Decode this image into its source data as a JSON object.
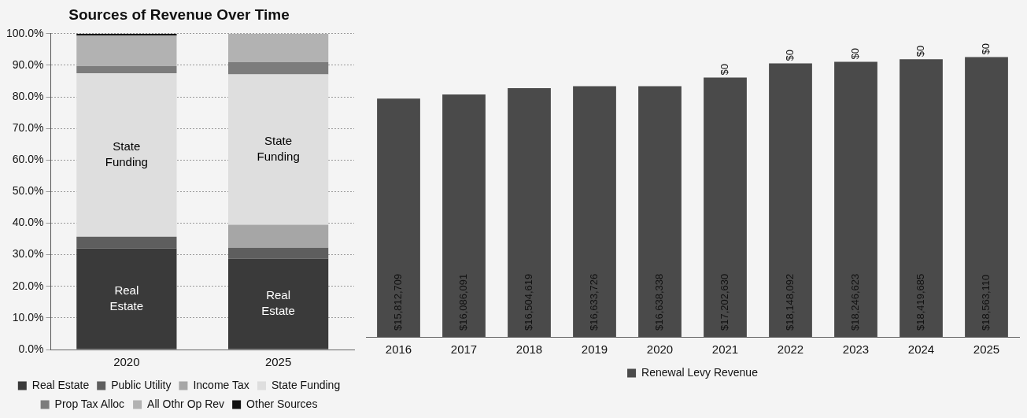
{
  "chart_data": [
    {
      "type": "bar",
      "title": "Sources of Revenue Over Time",
      "categories": [
        "2020",
        "2025"
      ],
      "stacked": true,
      "ylim": [
        0,
        100
      ],
      "yticks": [
        {
          "value": 0,
          "label": "0.0%"
        },
        {
          "value": 10,
          "label": "10.0%"
        },
        {
          "value": 20,
          "label": "20.0%"
        },
        {
          "value": 30,
          "label": "30.0%"
        },
        {
          "value": 40,
          "label": "40.0%"
        },
        {
          "value": 50,
          "label": "50.0%"
        },
        {
          "value": 60,
          "label": "60.0%"
        },
        {
          "value": 70,
          "label": "70.0%"
        },
        {
          "value": 80,
          "label": "80.0%"
        },
        {
          "value": 90,
          "label": "90.0%"
        },
        {
          "value": 100,
          "label": "100.0%"
        }
      ],
      "grid": "y",
      "legend": "bottom",
      "series": [
        {
          "name": "Real Estate",
          "color": "#3a3a3a",
          "values": [
            32.0,
            28.8
          ]
        },
        {
          "name": "Public Utility",
          "color": "#5e5e5e",
          "values": [
            3.7,
            3.4
          ]
        },
        {
          "name": "Income Tax",
          "color": "#a6a6a6",
          "values": [
            0,
            7.3
          ]
        },
        {
          "name": "State Funding",
          "color": "#dedede",
          "values": [
            51.8,
            47.6
          ]
        },
        {
          "name": "Prop Tax Alloc",
          "color": "#7c7c7c",
          "values": [
            2.2,
            3.9
          ]
        },
        {
          "name": "All Othr Op Rev",
          "color": "#b2b2b2",
          "values": [
            9.7,
            9.0
          ]
        },
        {
          "name": "Other Sources",
          "color": "#111111",
          "values": [
            0.6,
            0
          ]
        }
      ],
      "annotations": [
        "State Funding",
        "State Funding",
        "Real Estate",
        "Real Estate"
      ]
    },
    {
      "type": "bar",
      "categories": [
        "2016",
        "2017",
        "2018",
        "2019",
        "2020",
        "2021",
        "2022",
        "2023",
        "2024",
        "2025"
      ],
      "stacked": true,
      "tick_labels": "x",
      "grid": false,
      "legend": "bottom",
      "series": [
        {
          "name": "Renewal Levy Revenue",
          "color": "#4a4a4a",
          "values": [
            15812709,
            16086091,
            16504619,
            16633726,
            16638338,
            17202630,
            18148092,
            18246623,
            18419685,
            18563110
          ],
          "value_labels": [
            "$15,812,709",
            "$16,086,091",
            "$16,504,619",
            "$16,633,726",
            "$16,638,338",
            "$17,202,630",
            "$18,148,092",
            "$18,246,623",
            "$18,419,685",
            "$18,563,110"
          ]
        },
        {
          "color": "#4a4a4a",
          "values": [
            null,
            null,
            null,
            null,
            null,
            0,
            0,
            0,
            0,
            0
          ],
          "value_labels": [
            null,
            null,
            null,
            null,
            null,
            "$0",
            "$0",
            "$0",
            "$0",
            "$0"
          ]
        }
      ]
    }
  ]
}
